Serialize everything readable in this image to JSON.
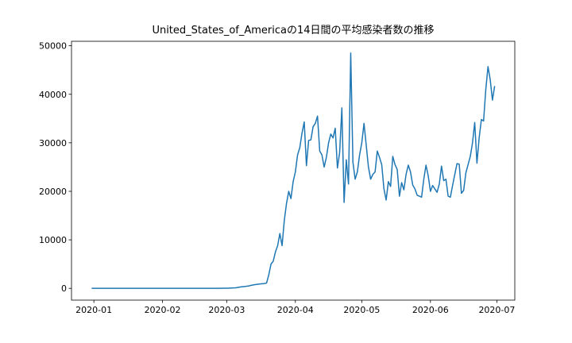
{
  "chart_data": {
    "type": "line",
    "title": "United_States_of_Americaの14日間の平均感染者数の推移",
    "x": [
      -1,
      0,
      1,
      2,
      3,
      4,
      5,
      6,
      7,
      8,
      9,
      10,
      11,
      12,
      13,
      14,
      15,
      16,
      17,
      18,
      19,
      20,
      21,
      22,
      23,
      24,
      25,
      26,
      27,
      28,
      29,
      30,
      31,
      32,
      33,
      34,
      35,
      36,
      37,
      38,
      39,
      40,
      41,
      42,
      43,
      44,
      45,
      46,
      47,
      48,
      49,
      50,
      51,
      52,
      53,
      54,
      55,
      56,
      57,
      58,
      59,
      60,
      61,
      62,
      63,
      64,
      65,
      66,
      67,
      68,
      69,
      70,
      71,
      72,
      73,
      74,
      75,
      76,
      77,
      78,
      79,
      80,
      81,
      82,
      83,
      84,
      85,
      86,
      87,
      88,
      89,
      90,
      91,
      92,
      93,
      94,
      95,
      96,
      97,
      98,
      99,
      100,
      101,
      102,
      103,
      104,
      105,
      106,
      107,
      108,
      109,
      110,
      111,
      112,
      113,
      114,
      115,
      116,
      117,
      118,
      119,
      120,
      121,
      122,
      123,
      124,
      125,
      126,
      127,
      128,
      129,
      130,
      131,
      132,
      133,
      134,
      135,
      136,
      137,
      138,
      139,
      140,
      141,
      142,
      143,
      144,
      145,
      146,
      147,
      148,
      149,
      150,
      151,
      152,
      153,
      154,
      155,
      156,
      157,
      158,
      159,
      160,
      161,
      162,
      163,
      164,
      165,
      166,
      167,
      168,
      169,
      170,
      171,
      172,
      173,
      174,
      175,
      176,
      177,
      178,
      179,
      180,
      181
    ],
    "series": [
      {
        "color": "#1f77b4",
        "values": [
          0,
          0,
          0,
          0,
          0,
          0,
          0,
          0,
          0,
          0,
          0,
          0,
          0,
          0,
          0,
          0,
          0,
          0,
          0,
          0,
          0,
          0,
          0,
          0,
          0,
          0,
          0,
          0,
          0,
          0,
          0,
          0,
          0,
          0,
          0,
          0,
          0,
          0,
          0,
          0,
          0,
          0,
          0,
          1,
          0,
          1,
          0,
          3,
          0,
          2,
          1,
          4,
          1,
          3,
          6,
          7,
          11,
          13,
          15,
          25,
          30,
          40,
          60,
          75,
          100,
          120,
          200,
          270,
          330,
          380,
          430,
          500,
          620,
          700,
          780,
          850,
          900,
          950,
          1000,
          1100,
          2800,
          5000,
          5600,
          7500,
          8800,
          11300,
          8800,
          14000,
          17500,
          20000,
          18500,
          22000,
          24000,
          27500,
          29000,
          32000,
          34300,
          25300,
          30500,
          30600,
          33300,
          34000,
          35500,
          28300,
          27500,
          25000,
          27000,
          30000,
          31800,
          31000,
          33000,
          24800,
          28000,
          37200,
          17700,
          26500,
          21500,
          48500,
          26000,
          22500,
          24000,
          27500,
          30000,
          34000,
          29500,
          25000,
          22500,
          23500,
          24000,
          28300,
          27000,
          25500,
          20500,
          18200,
          22000,
          21000,
          27200,
          25500,
          24500,
          19000,
          21800,
          20300,
          23500,
          25400,
          24000,
          21300,
          20500,
          19200,
          19000,
          18800,
          22500,
          25400,
          23200,
          20000,
          21200,
          20500,
          19800,
          21500,
          25200,
          22200,
          22500,
          19000,
          18800,
          21200,
          23500,
          25700,
          25600,
          19600,
          20200,
          23800,
          25500,
          27200,
          30000,
          34200,
          25800,
          31000,
          34800,
          34500,
          41000,
          45700,
          43000,
          38800,
          41700
        ]
      }
    ],
    "xlim": [
      -10.1,
      190.1
    ],
    "xticks": [
      {
        "value": 0,
        "label": "2020-01"
      },
      {
        "value": 31,
        "label": "2020-02"
      },
      {
        "value": 60,
        "label": "2020-03"
      },
      {
        "value": 91,
        "label": "2020-04"
      },
      {
        "value": 121,
        "label": "2020-05"
      },
      {
        "value": 152,
        "label": "2020-06"
      },
      {
        "value": 182,
        "label": "2020-07"
      }
    ],
    "ylim": [
      -2425,
      50925
    ],
    "yticks": [
      0,
      10000,
      20000,
      30000,
      40000,
      50000
    ]
  }
}
